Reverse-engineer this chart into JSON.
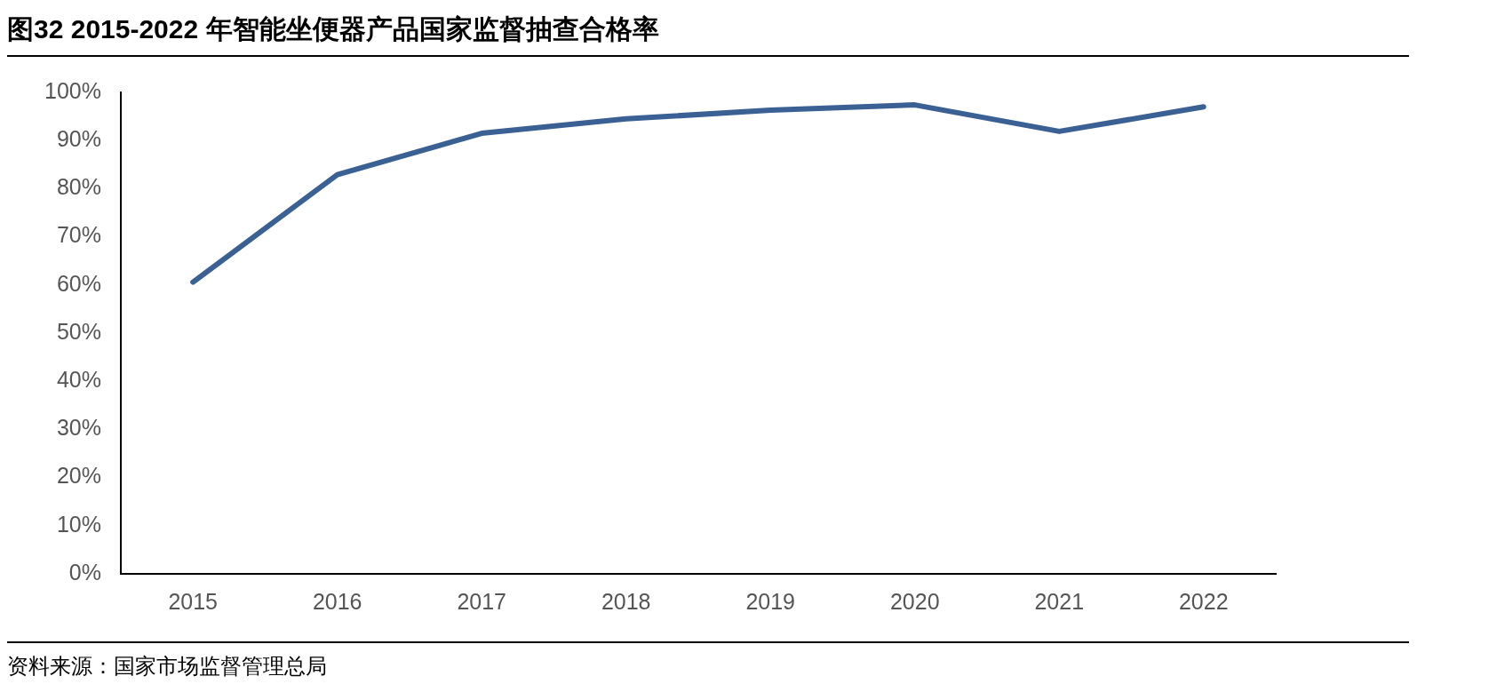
{
  "chart_data": {
    "type": "line",
    "title": "图32 2015-2022 年智能坐便器产品国家监督抽查合格率",
    "annotations": [
      "资料来源：国家市场监督管理总局"
    ],
    "categories": [
      "2015",
      "2016",
      "2017",
      "2018",
      "2019",
      "2020",
      "2021",
      "2022"
    ],
    "series": [
      {
        "color": "#3a6094",
        "values": [
          60.6,
          82.9,
          91.5,
          94.5,
          96.3,
          97.4,
          91.9,
          97.0
        ]
      }
    ],
    "ylim": [
      0,
      100
    ],
    "yticks": [
      {
        "value": 0,
        "label": "0%"
      },
      {
        "value": 10,
        "label": "10%"
      },
      {
        "value": 20,
        "label": "20%"
      },
      {
        "value": 30,
        "label": "30%"
      },
      {
        "value": 40,
        "label": "40%"
      },
      {
        "value": 50,
        "label": "50%"
      },
      {
        "value": 60,
        "label": "60%"
      },
      {
        "value": 70,
        "label": "70%"
      },
      {
        "value": 80,
        "label": "80%"
      },
      {
        "value": 90,
        "label": "90%"
      },
      {
        "value": 100,
        "label": "100%"
      }
    ],
    "grid": false,
    "legend": false,
    "marker": "none",
    "line_style": "solid"
  }
}
